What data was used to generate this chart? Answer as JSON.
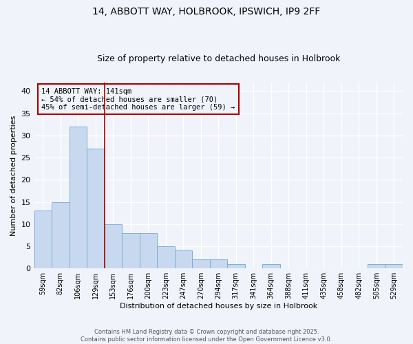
{
  "title_line1": "14, ABBOTT WAY, HOLBROOK, IPSWICH, IP9 2FF",
  "title_line2": "Size of property relative to detached houses in Holbrook",
  "xlabel": "Distribution of detached houses by size in Holbrook",
  "ylabel": "Number of detached properties",
  "categories": [
    "59sqm",
    "82sqm",
    "106sqm",
    "129sqm",
    "153sqm",
    "176sqm",
    "200sqm",
    "223sqm",
    "247sqm",
    "270sqm",
    "294sqm",
    "317sqm",
    "341sqm",
    "364sqm",
    "388sqm",
    "411sqm",
    "435sqm",
    "458sqm",
    "482sqm",
    "505sqm",
    "529sqm"
  ],
  "values": [
    13,
    15,
    32,
    27,
    10,
    8,
    8,
    5,
    4,
    2,
    2,
    1,
    0,
    1,
    0,
    0,
    0,
    0,
    0,
    1,
    1
  ],
  "bar_color": "#c8d8ee",
  "bar_edge_color": "#7aafd4",
  "background_color": "#f0f4fa",
  "plot_bg_color": "#f0f4fa",
  "grid_color": "#ffffff",
  "vline_x": 3.5,
  "vline_color": "#aa0000",
  "ylim": [
    0,
    42
  ],
  "yticks": [
    0,
    5,
    10,
    15,
    20,
    25,
    30,
    35,
    40
  ],
  "annotation_text": "14 ABBOTT WAY: 141sqm\n← 54% of detached houses are smaller (70)\n45% of semi-detached houses are larger (59) →",
  "annotation_box_facecolor": "#f0f4fa",
  "annotation_box_edgecolor": "#aa0000",
  "footer_line1": "Contains HM Land Registry data © Crown copyright and database right 2025.",
  "footer_line2": "Contains public sector information licensed under the Open Government Licence v3.0.",
  "title1_fontsize": 10,
  "title2_fontsize": 9,
  "ylabel_fontsize": 8,
  "xlabel_fontsize": 8,
  "ytick_fontsize": 8,
  "xtick_fontsize": 7,
  "annot_fontsize": 7.5,
  "footer_fontsize": 6
}
